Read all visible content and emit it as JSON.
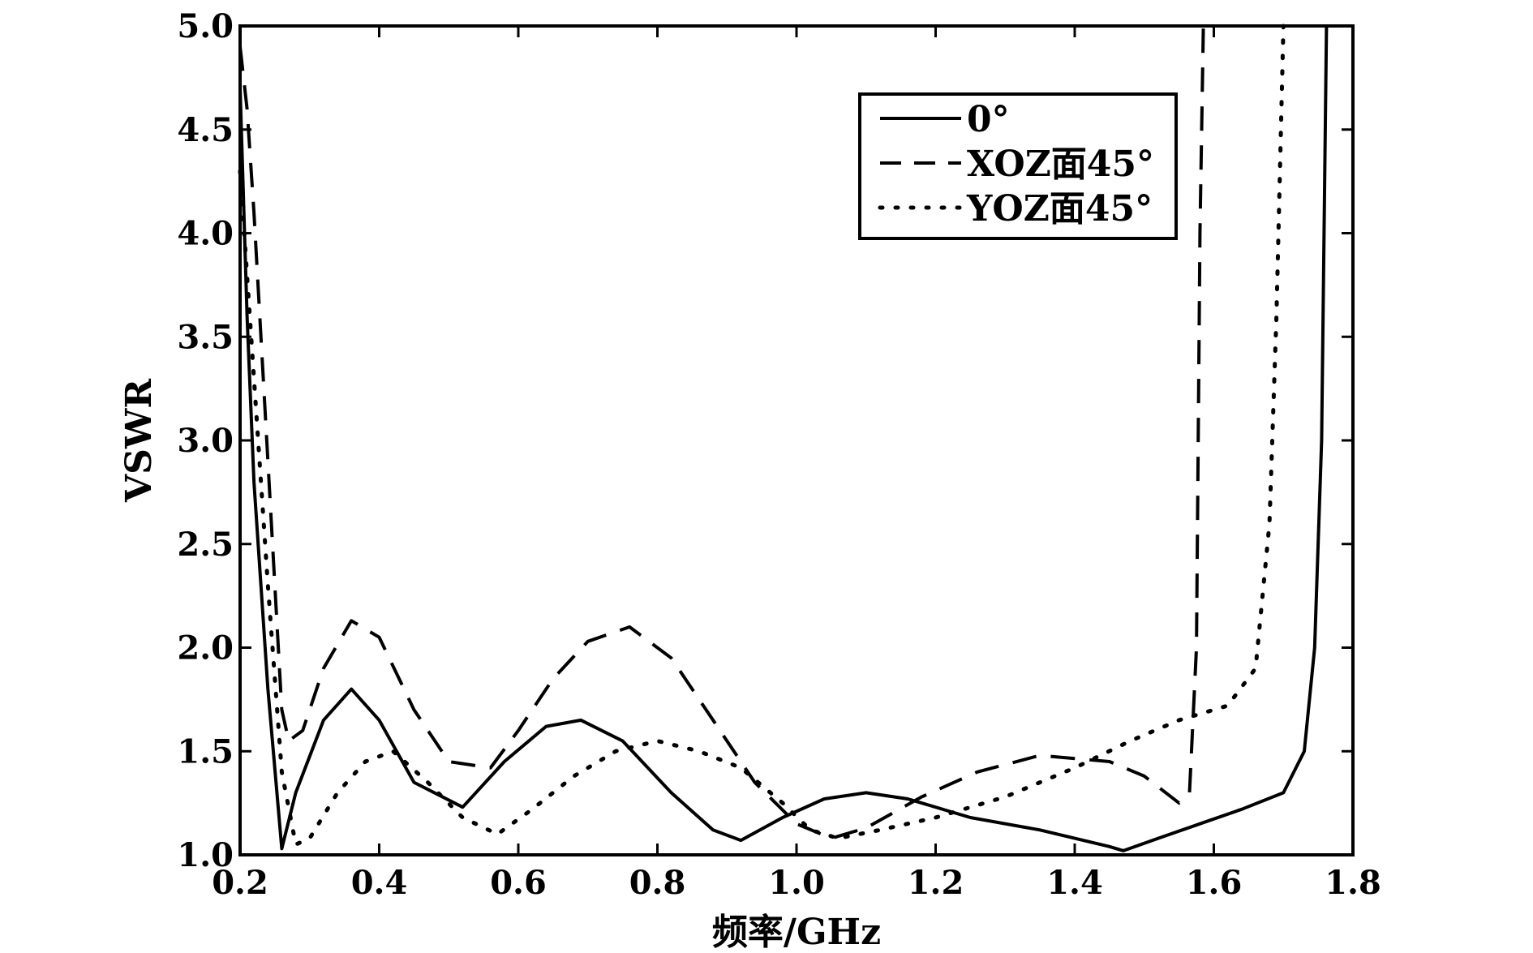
{
  "chart_data": {
    "type": "line",
    "title": "",
    "xlabel": "频率/GHz",
    "ylabel": "VSWR",
    "xlim": [
      0.2,
      1.8
    ],
    "ylim": [
      1.0,
      5.0
    ],
    "xticks": [
      "0.2",
      "0.4",
      "0.6",
      "0.8",
      "1.0",
      "1.2",
      "1.4",
      "1.6",
      "1.8"
    ],
    "yticks": [
      "1.0",
      "1.5",
      "2.0",
      "2.5",
      "3.0",
      "3.5",
      "4.0",
      "4.5",
      "5.0"
    ],
    "grid": false,
    "legend_position": "top-right",
    "series": [
      {
        "name": "0°",
        "style": "solid",
        "color": "#000000",
        "points": [
          [
            0.2,
            4.7
          ],
          [
            0.21,
            3.6
          ],
          [
            0.22,
            2.8
          ],
          [
            0.24,
            1.8
          ],
          [
            0.26,
            1.03
          ],
          [
            0.28,
            1.3
          ],
          [
            0.32,
            1.65
          ],
          [
            0.36,
            1.8
          ],
          [
            0.4,
            1.65
          ],
          [
            0.45,
            1.35
          ],
          [
            0.52,
            1.23
          ],
          [
            0.58,
            1.45
          ],
          [
            0.64,
            1.62
          ],
          [
            0.69,
            1.65
          ],
          [
            0.75,
            1.55
          ],
          [
            0.82,
            1.3
          ],
          [
            0.88,
            1.12
          ],
          [
            0.92,
            1.07
          ],
          [
            0.98,
            1.18
          ],
          [
            1.04,
            1.27
          ],
          [
            1.1,
            1.3
          ],
          [
            1.16,
            1.27
          ],
          [
            1.25,
            1.18
          ],
          [
            1.35,
            1.12
          ],
          [
            1.45,
            1.04
          ],
          [
            1.47,
            1.02
          ],
          [
            1.52,
            1.08
          ],
          [
            1.58,
            1.15
          ],
          [
            1.64,
            1.22
          ],
          [
            1.7,
            1.3
          ],
          [
            1.73,
            1.5
          ],
          [
            1.745,
            2.0
          ],
          [
            1.755,
            3.0
          ],
          [
            1.762,
            5.0
          ]
        ]
      },
      {
        "name": "XOZ面45°",
        "style": "dashed",
        "color": "#000000",
        "points": [
          [
            0.2,
            4.9
          ],
          [
            0.21,
            4.6
          ],
          [
            0.22,
            4.1
          ],
          [
            0.24,
            2.9
          ],
          [
            0.26,
            1.7
          ],
          [
            0.27,
            1.55
          ],
          [
            0.29,
            1.6
          ],
          [
            0.32,
            1.9
          ],
          [
            0.36,
            2.13
          ],
          [
            0.4,
            2.05
          ],
          [
            0.45,
            1.7
          ],
          [
            0.5,
            1.45
          ],
          [
            0.56,
            1.42
          ],
          [
            0.6,
            1.6
          ],
          [
            0.65,
            1.85
          ],
          [
            0.7,
            2.03
          ],
          [
            0.76,
            2.1
          ],
          [
            0.82,
            1.95
          ],
          [
            0.88,
            1.65
          ],
          [
            0.94,
            1.35
          ],
          [
            1.0,
            1.15
          ],
          [
            1.05,
            1.08
          ],
          [
            1.1,
            1.13
          ],
          [
            1.18,
            1.28
          ],
          [
            1.26,
            1.4
          ],
          [
            1.35,
            1.48
          ],
          [
            1.45,
            1.45
          ],
          [
            1.5,
            1.38
          ],
          [
            1.55,
            1.25
          ],
          [
            1.565,
            1.3
          ],
          [
            1.575,
            2.0
          ],
          [
            1.58,
            4.0
          ],
          [
            1.585,
            5.0
          ]
        ]
      },
      {
        "name": "YOZ面45°",
        "style": "dotted",
        "color": "#000000",
        "points": [
          [
            0.2,
            4.3
          ],
          [
            0.22,
            3.3
          ],
          [
            0.24,
            2.3
          ],
          [
            0.26,
            1.4
          ],
          [
            0.28,
            1.05
          ],
          [
            0.3,
            1.08
          ],
          [
            0.34,
            1.3
          ],
          [
            0.38,
            1.45
          ],
          [
            0.42,
            1.5
          ],
          [
            0.47,
            1.35
          ],
          [
            0.52,
            1.18
          ],
          [
            0.57,
            1.1
          ],
          [
            0.62,
            1.22
          ],
          [
            0.68,
            1.38
          ],
          [
            0.74,
            1.5
          ],
          [
            0.8,
            1.55
          ],
          [
            0.86,
            1.5
          ],
          [
            0.92,
            1.42
          ],
          [
            0.98,
            1.25
          ],
          [
            1.02,
            1.12
          ],
          [
            1.06,
            1.08
          ],
          [
            1.12,
            1.12
          ],
          [
            1.2,
            1.18
          ],
          [
            1.3,
            1.28
          ],
          [
            1.4,
            1.42
          ],
          [
            1.48,
            1.55
          ],
          [
            1.55,
            1.65
          ],
          [
            1.62,
            1.72
          ],
          [
            1.66,
            1.9
          ],
          [
            1.68,
            2.6
          ],
          [
            1.69,
            3.6
          ],
          [
            1.7,
            5.0
          ]
        ]
      }
    ]
  }
}
